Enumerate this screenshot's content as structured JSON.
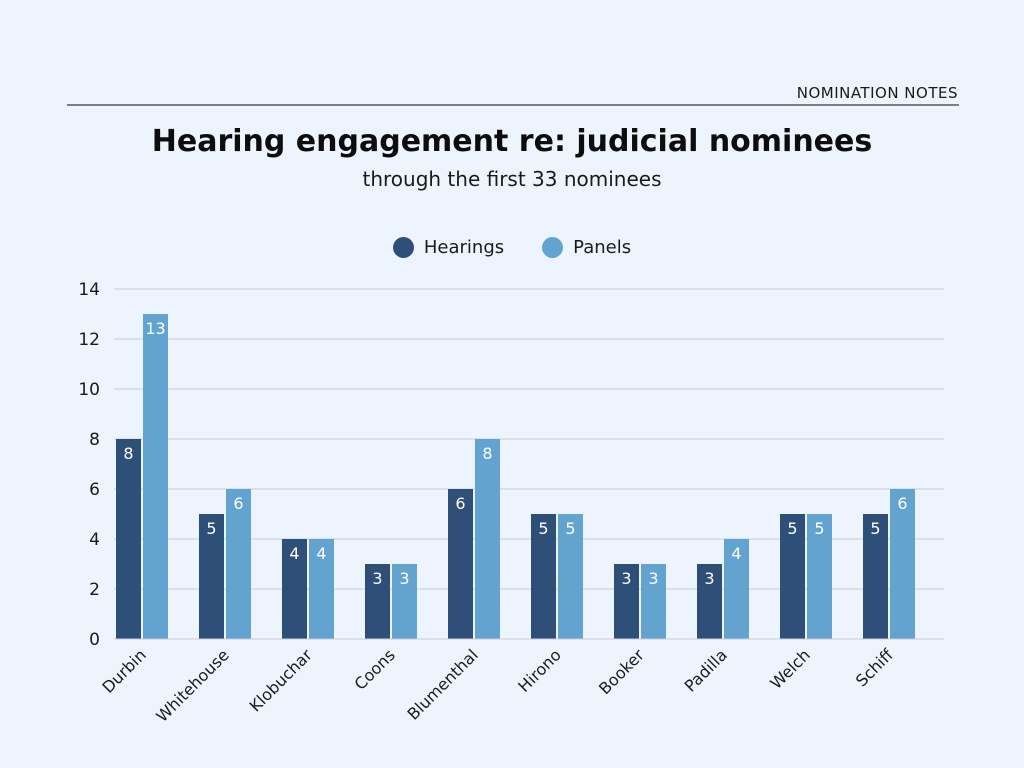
{
  "header": {
    "brand": "NOMINATION NOTES"
  },
  "colors": {
    "hearings": "#2e5078",
    "panels": "#62a4cf",
    "grid": "#c8ccd6",
    "background": "#eef4fd"
  },
  "chart_data": {
    "type": "bar",
    "title": "Hearing engagement re: judicial nominees",
    "subtitle": "through the first 33 nominees",
    "xlabel": "",
    "ylabel": "",
    "ylim": [
      0,
      14
    ],
    "yticks": [
      0,
      2,
      4,
      6,
      8,
      10,
      12,
      14
    ],
    "legend_position": "top-center",
    "categories": [
      "Durbin",
      "Whitehouse",
      "Klobuchar",
      "Coons",
      "Blumenthal",
      "Hirono",
      "Booker",
      "Padilla",
      "Welch",
      "Schiff"
    ],
    "series": [
      {
        "name": "Hearings",
        "values": [
          8,
          5,
          4,
          3,
          6,
          5,
          3,
          3,
          5,
          5
        ]
      },
      {
        "name": "Panels",
        "values": [
          13,
          6,
          4,
          3,
          8,
          5,
          3,
          4,
          5,
          6
        ]
      }
    ]
  }
}
